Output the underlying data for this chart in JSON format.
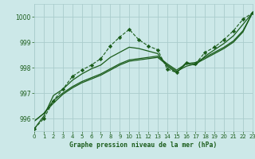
{
  "title": "Graphe pression niveau de la mer (hPa)",
  "background_color": "#cce8e8",
  "grid_color": "#aacccc",
  "line_color": "#1a5c1a",
  "xlim": [
    0,
    23
  ],
  "ylim": [
    995.5,
    1000.5
  ],
  "yticks": [
    996,
    997,
    998,
    999,
    1000
  ],
  "xticks": [
    0,
    1,
    2,
    3,
    4,
    5,
    6,
    7,
    8,
    9,
    10,
    11,
    12,
    13,
    14,
    15,
    16,
    17,
    18,
    19,
    20,
    21,
    22,
    23
  ],
  "series": [
    {
      "x": [
        0,
        1,
        2,
        3,
        4,
        5,
        6,
        7,
        8,
        9,
        10,
        11,
        12,
        13,
        14,
        15,
        16,
        17,
        18,
        19,
        20,
        21,
        22,
        23
      ],
      "y": [
        995.6,
        996.0,
        996.7,
        997.15,
        997.65,
        997.9,
        998.1,
        998.35,
        998.85,
        999.2,
        999.5,
        999.1,
        998.85,
        998.7,
        997.95,
        997.8,
        998.2,
        998.15,
        998.6,
        998.8,
        999.1,
        999.45,
        999.9,
        1000.15
      ],
      "style": "dashed_marker",
      "linewidth": 0.8,
      "markersize": 2.2
    },
    {
      "x": [
        0,
        1,
        2,
        3,
        4,
        5,
        6,
        7,
        8,
        9,
        10,
        11,
        12,
        13,
        14,
        15,
        16,
        17,
        18,
        19,
        20,
        21,
        22,
        23
      ],
      "y": [
        995.6,
        996.1,
        996.9,
        997.15,
        997.5,
        997.75,
        997.95,
        998.1,
        998.4,
        998.6,
        998.8,
        998.75,
        998.65,
        998.55,
        998.05,
        997.8,
        998.15,
        998.1,
        998.45,
        998.7,
        998.95,
        999.25,
        999.7,
        1000.15
      ],
      "style": "solid",
      "linewidth": 0.9
    },
    {
      "x": [
        0,
        1,
        2,
        3,
        4,
        5,
        6,
        7,
        8,
        9,
        10,
        11,
        12,
        13,
        14,
        15,
        16,
        17,
        18,
        19,
        20,
        21,
        22,
        23
      ],
      "y": [
        995.9,
        996.2,
        996.7,
        997.0,
        997.25,
        997.45,
        997.6,
        997.75,
        997.95,
        998.15,
        998.3,
        998.35,
        998.4,
        998.45,
        998.15,
        997.9,
        998.15,
        998.2,
        998.4,
        998.6,
        998.8,
        999.05,
        999.45,
        1000.15
      ],
      "style": "solid",
      "linewidth": 0.9
    },
    {
      "x": [
        0,
        1,
        2,
        3,
        4,
        5,
        6,
        7,
        8,
        9,
        10,
        11,
        12,
        13,
        14,
        15,
        16,
        17,
        18,
        19,
        20,
        21,
        22,
        23
      ],
      "y": [
        995.9,
        996.2,
        996.6,
        996.95,
        997.2,
        997.4,
        997.55,
        997.7,
        997.9,
        998.1,
        998.25,
        998.3,
        998.35,
        998.4,
        998.1,
        997.85,
        998.05,
        998.15,
        998.35,
        998.55,
        998.75,
        999.0,
        999.4,
        1000.15
      ],
      "style": "solid",
      "linewidth": 0.9
    }
  ]
}
